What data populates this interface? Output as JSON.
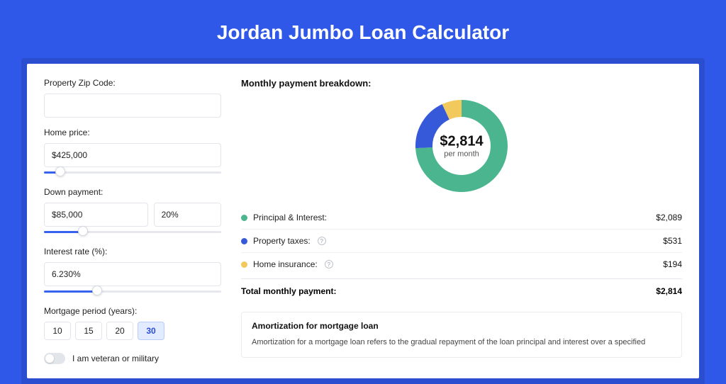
{
  "page": {
    "title": "Jordan Jumbo Loan Calculator",
    "bg_color": "#3058e8",
    "shadow_color": "#2b4ed0",
    "card_bg": "#ffffff"
  },
  "form": {
    "zip": {
      "label": "Property Zip Code:",
      "value": ""
    },
    "home_price": {
      "label": "Home price:",
      "value": "$425,000",
      "slider_pct": 9
    },
    "down_payment": {
      "label": "Down payment:",
      "value": "$85,000",
      "pct_value": "20%",
      "slider_pct": 22
    },
    "interest": {
      "label": "Interest rate (%):",
      "value": "6.230%",
      "slider_pct": 30
    },
    "period": {
      "label": "Mortgage period (years):",
      "options": [
        "10",
        "15",
        "20",
        "30"
      ],
      "selected": "30"
    },
    "veteran": {
      "label": "I am veteran or military",
      "checked": false
    }
  },
  "breakdown": {
    "title": "Monthly payment breakdown:",
    "donut": {
      "center_amount": "$2,814",
      "center_sub": "per month",
      "size": 130,
      "thickness": 24,
      "segments": [
        {
          "name": "principal_interest",
          "value": 2089,
          "color": "#4ab58e"
        },
        {
          "name": "property_taxes",
          "value": 531,
          "color": "#3559d9"
        },
        {
          "name": "home_insurance",
          "value": 194,
          "color": "#f2c95c"
        }
      ]
    },
    "rows": [
      {
        "label": "Principal & Interest:",
        "value": "$2,089",
        "color": "#4ab58e",
        "info": false
      },
      {
        "label": "Property taxes:",
        "value": "$531",
        "color": "#3559d9",
        "info": true
      },
      {
        "label": "Home insurance:",
        "value": "$194",
        "color": "#f2c95c",
        "info": true
      }
    ],
    "total": {
      "label": "Total monthly payment:",
      "value": "$2,814"
    }
  },
  "amortization": {
    "title": "Amortization for mortgage loan",
    "text": "Amortization for a mortgage loan refers to the gradual repayment of the loan principal and interest over a specified"
  },
  "style": {
    "accent": "#3862f0",
    "border": "#e2e5ea",
    "label_fontsize": 12,
    "title_fontsize": 28
  }
}
